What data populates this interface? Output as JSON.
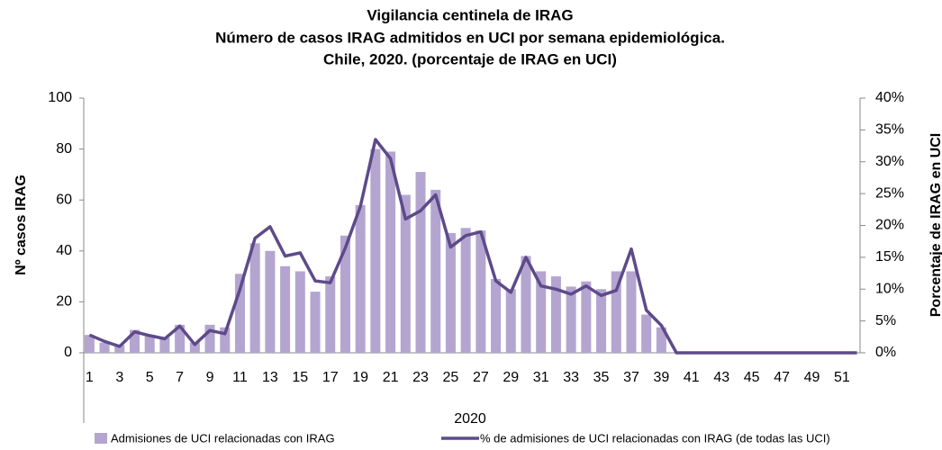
{
  "chart_data": {
    "type": "bar-line",
    "title_lines": [
      "Vigilancia centinela de IRAG",
      "Número de casos IRAG admitidos en UCI por semana epidemiológica.",
      "Chile, 2020.  (porcentaje de IRAG en UCI)"
    ],
    "x_label": "2020",
    "y_label": "Nº casos IRAG",
    "y2_label": "Porcentaje de IRAG en UCI",
    "categories": [
      "1",
      null,
      "3",
      null,
      "5",
      null,
      "7",
      null,
      "9",
      null,
      "11",
      null,
      "13",
      null,
      "15",
      null,
      "17",
      null,
      "19",
      null,
      "21",
      null,
      "23",
      null,
      "25",
      null,
      "27",
      null,
      "29",
      null,
      "31",
      null,
      "33",
      null,
      "35",
      null,
      "37",
      null,
      "39",
      null,
      "41",
      null,
      "43",
      null,
      "45",
      null,
      "47",
      null,
      "49",
      null,
      "51",
      null
    ],
    "series": [
      {
        "name": "Admisiones de UCI relacionadas con IRAG",
        "type": "bar",
        "color": "#b4a5d0",
        "values": [
          7,
          4,
          3,
          9,
          7,
          6,
          11,
          4,
          11,
          10,
          31,
          43,
          40,
          34,
          32,
          24,
          30,
          46,
          58,
          80,
          79,
          62,
          71,
          64,
          47,
          49,
          48,
          29,
          25,
          38,
          32,
          30,
          26,
          28,
          25,
          32,
          32,
          15,
          10,
          0,
          0,
          0,
          0,
          0,
          0,
          0,
          0,
          0,
          0,
          0,
          0,
          0
        ]
      },
      {
        "name": "% de admisiones de UCI relacionadas con IRAG (de todas las UCI)",
        "type": "line",
        "axis": "y2",
        "color": "#5e4a8a",
        "values": [
          2.8,
          1.8,
          1,
          3.3,
          2.7,
          2.2,
          4.2,
          1.3,
          3.5,
          3,
          10,
          18,
          19.8,
          15.2,
          15.7,
          11.3,
          11,
          16.5,
          23,
          33.5,
          30.5,
          21,
          22.3,
          24.8,
          16.6,
          18.4,
          19,
          11.3,
          9.5,
          15,
          10.5,
          10,
          9.2,
          10.5,
          9,
          9.8,
          16.3,
          6.7,
          4.3,
          0,
          0,
          0,
          0,
          0,
          0,
          0,
          0,
          0,
          0,
          0,
          0,
          0
        ]
      }
    ],
    "ylim": [
      0,
      100
    ],
    "yticks": [
      0,
      20,
      40,
      60,
      80,
      100
    ],
    "y2lim": [
      0,
      40
    ],
    "y2ticks": [
      {
        "value": 0,
        "label": "0%"
      },
      {
        "value": 5,
        "label": "5%"
      },
      {
        "value": 10,
        "label": "10%"
      },
      {
        "value": 15,
        "label": "15%"
      },
      {
        "value": 20,
        "label": "20%"
      },
      {
        "value": 25,
        "label": "25%"
      },
      {
        "value": 30,
        "label": "30%"
      },
      {
        "value": 35,
        "label": "35%"
      },
      {
        "value": 40,
        "label": "40%"
      }
    ]
  }
}
